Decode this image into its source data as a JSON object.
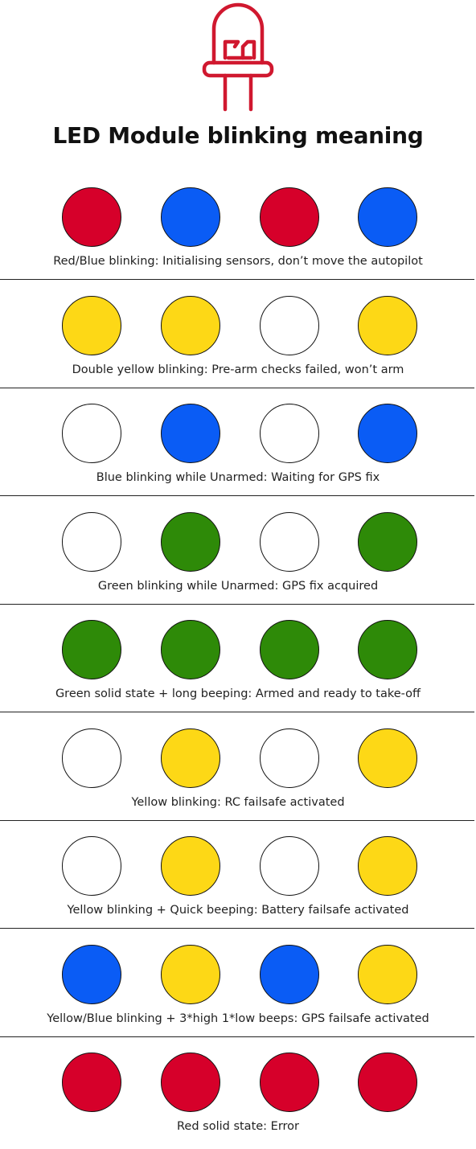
{
  "header": {
    "icon": "led-icon",
    "icon_color": "#d0182f",
    "title": "LED Module blinking meaning"
  },
  "colors": {
    "red": "#d6002a",
    "blue": "#0a5cf5",
    "yellow": "#fdd816",
    "green": "#2e8a08",
    "white": "#ffffff",
    "outline": "#111111"
  },
  "rows": [
    {
      "pattern": [
        "red",
        "blue",
        "red",
        "blue"
      ],
      "caption": "Red/Blue blinking: Initialising sensors, don’t move the autopilot"
    },
    {
      "pattern": [
        "yellow",
        "yellow",
        "white",
        "yellow"
      ],
      "caption": "Double yellow blinking: Pre-arm checks failed, won’t arm"
    },
    {
      "pattern": [
        "white",
        "blue",
        "white",
        "blue"
      ],
      "caption": "Blue blinking while Unarmed: Waiting for GPS fix"
    },
    {
      "pattern": [
        "white",
        "green",
        "white",
        "green"
      ],
      "caption": "Green blinking while Unarmed: GPS fix acquired"
    },
    {
      "pattern": [
        "green",
        "green",
        "green",
        "green"
      ],
      "caption": "Green solid state + long beeping: Armed and ready to take-off"
    },
    {
      "pattern": [
        "white",
        "yellow",
        "white",
        "yellow"
      ],
      "caption": "Yellow blinking: RC failsafe activated"
    },
    {
      "pattern": [
        "white",
        "yellow",
        "white",
        "yellow"
      ],
      "caption": "Yellow blinking + Quick beeping: Battery failsafe activated"
    },
    {
      "pattern": [
        "blue",
        "yellow",
        "blue",
        "yellow"
      ],
      "caption": "Yellow/Blue blinking + 3*high 1*low beeps: GPS failsafe activated"
    },
    {
      "pattern": [
        "red",
        "red",
        "red",
        "red"
      ],
      "caption": "Red solid state: Error"
    }
  ]
}
